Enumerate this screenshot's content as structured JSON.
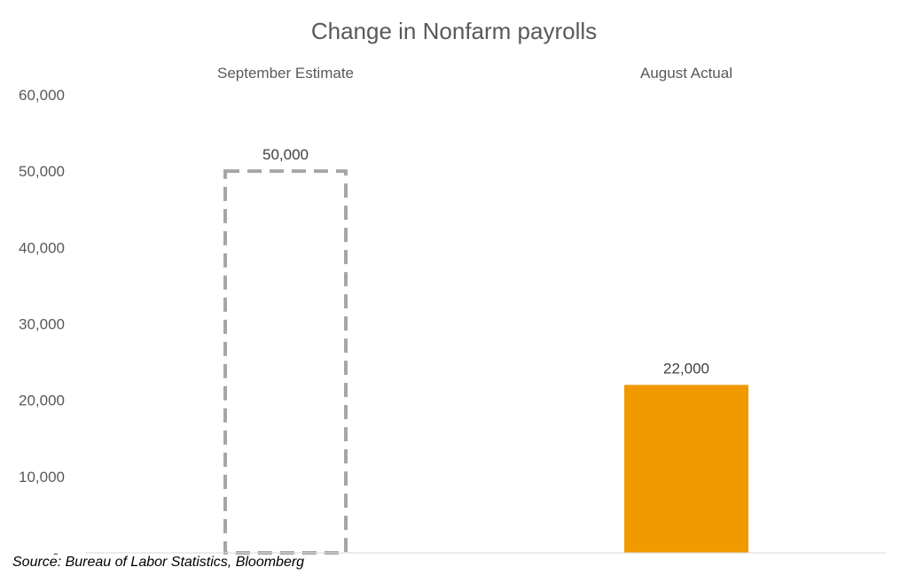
{
  "chart_data": {
    "type": "bar",
    "title": "Change in Nonfarm payrolls",
    "categories": [
      "September Estimate",
      "August Actual"
    ],
    "values": [
      50000,
      22000
    ],
    "value_labels": [
      "50,000",
      "22,000"
    ],
    "bar_styles": [
      "dashed-outline",
      "solid"
    ],
    "colors": [
      "#a6a6a6",
      "#f09a00"
    ],
    "ylim": [
      0,
      60000
    ],
    "yticks": [
      0,
      10000,
      20000,
      30000,
      40000,
      50000,
      60000
    ],
    "ytick_labels": [
      "-",
      "10,000",
      "20,000",
      "30,000",
      "40,000",
      "50,000",
      "60,000"
    ],
    "category_label_position": "top",
    "grid": false,
    "legend": "none"
  },
  "source": "Source: Bureau of Labor Statistics, Bloomberg"
}
